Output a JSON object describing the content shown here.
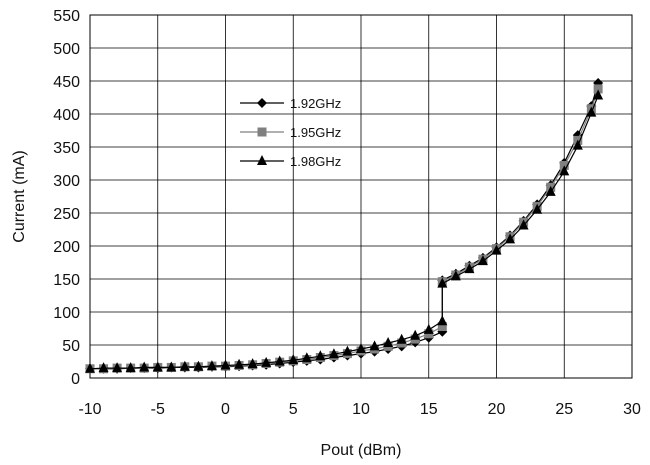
{
  "chart_data": {
    "type": "line",
    "title": "",
    "xlabel": "Pout (dBm)",
    "ylabel": "Current (mA)",
    "xlim": [
      -10,
      30
    ],
    "ylim": [
      0,
      550
    ],
    "xticks": [
      -10,
      -5,
      0,
      5,
      10,
      15,
      20,
      25,
      30
    ],
    "yticks": [
      0,
      50,
      100,
      150,
      200,
      250,
      300,
      350,
      400,
      450,
      500,
      550
    ],
    "grid": true,
    "legend": "upper-left inside plot",
    "series": [
      {
        "name": "1.92GHz",
        "marker": "diamond",
        "color": "#000000",
        "x": [
          -10,
          -9,
          -8,
          -7,
          -6,
          -5,
          -4,
          -3,
          -2,
          -1,
          0,
          1,
          2,
          3,
          4,
          5,
          6,
          7,
          8,
          9,
          10,
          11,
          12,
          13,
          14,
          15,
          16,
          16,
          17,
          18,
          19,
          20,
          21,
          22,
          23,
          24,
          25,
          26,
          27,
          27.5
        ],
        "y": [
          14,
          14,
          14,
          15,
          15,
          15,
          16,
          16,
          16,
          17,
          17,
          18,
          19,
          20,
          22,
          24,
          26,
          28,
          31,
          34,
          37,
          40,
          44,
          48,
          54,
          61,
          70,
          148,
          158,
          170,
          182,
          198,
          216,
          238,
          263,
          292,
          326,
          368,
          412,
          447
        ]
      },
      {
        "name": "1.95GHz",
        "marker": "square",
        "color": "#808080",
        "x": [
          -10,
          -9,
          -8,
          -7,
          -6,
          -5,
          -4,
          -3,
          -2,
          -1,
          0,
          1,
          2,
          3,
          4,
          5,
          6,
          7,
          8,
          9,
          10,
          11,
          12,
          13,
          14,
          15,
          16,
          16,
          17,
          18,
          19,
          20,
          21,
          22,
          23,
          24,
          25,
          26,
          27,
          27.5
        ],
        "y": [
          14,
          14,
          15,
          15,
          15,
          16,
          16,
          17,
          17,
          18,
          18,
          19,
          20,
          22,
          24,
          26,
          28,
          31,
          34,
          37,
          41,
          44,
          48,
          53,
          59,
          67,
          78,
          146,
          156,
          168,
          180,
          196,
          214,
          236,
          260,
          289,
          322,
          360,
          408,
          438
        ]
      },
      {
        "name": "1.98GHz",
        "marker": "triangle",
        "color": "#000000",
        "x": [
          -10,
          -9,
          -8,
          -7,
          -6,
          -5,
          -4,
          -3,
          -2,
          -1,
          0,
          1,
          2,
          3,
          4,
          5,
          6,
          7,
          8,
          9,
          10,
          11,
          12,
          13,
          14,
          15,
          16,
          16,
          17,
          18,
          19,
          20,
          21,
          22,
          23,
          24,
          25,
          26,
          27,
          27.5
        ],
        "y": [
          14,
          15,
          15,
          15,
          16,
          16,
          16,
          17,
          17,
          18,
          19,
          20,
          21,
          23,
          25,
          27,
          30,
          33,
          36,
          40,
          44,
          48,
          53,
          58,
          64,
          73,
          86,
          143,
          154,
          165,
          177,
          193,
          210,
          231,
          255,
          282,
          313,
          352,
          402,
          428
        ]
      }
    ]
  }
}
